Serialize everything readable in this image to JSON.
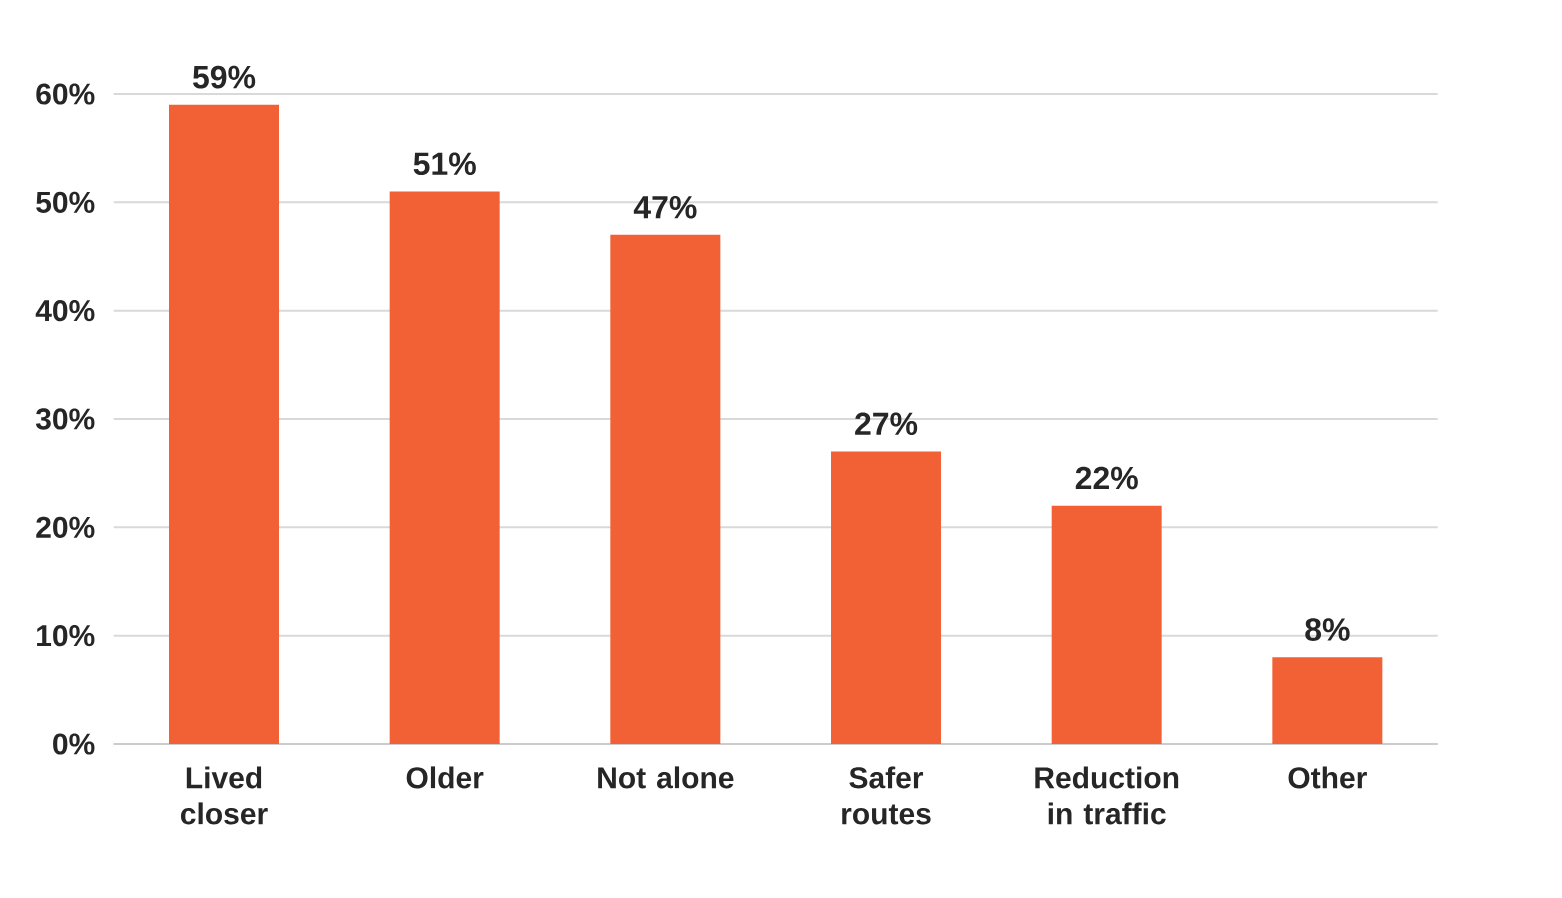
{
  "chart_data": {
    "type": "bar",
    "categories": [
      "Lived closer",
      "Older",
      "Not alone",
      "Safer routes",
      "Reduction in traffic",
      "Other"
    ],
    "values": [
      59,
      51,
      47,
      27,
      22,
      8
    ],
    "value_labels": [
      "59%",
      "51%",
      "47%",
      "27%",
      "22%",
      "8%"
    ],
    "color": "#f26135",
    "ylim": [
      0,
      60
    ],
    "yticks": [
      {
        "value": 0,
        "label": "0%"
      },
      {
        "value": 10,
        "label": "10%"
      },
      {
        "value": 20,
        "label": "20%"
      },
      {
        "value": 30,
        "label": "30%"
      },
      {
        "value": 40,
        "label": "40%"
      },
      {
        "value": 50,
        "label": "50%"
      },
      {
        "value": 60,
        "label": "60%"
      }
    ],
    "grid": "y"
  }
}
